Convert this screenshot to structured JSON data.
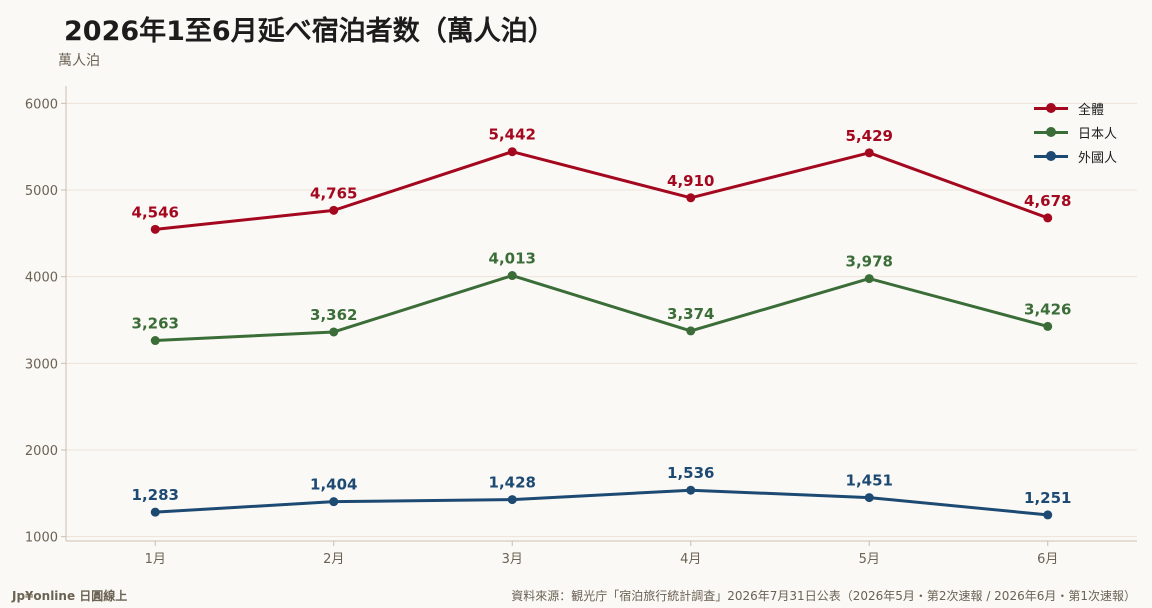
{
  "title": "2026年1至6月延べ宿泊者数（萬人泊）",
  "unit_label": "萬人泊",
  "brand": "Jp¥online 日圓線上",
  "source": "資料來源：観光庁「宿泊旅行統計調査」2026年7月31日公表（2026年5月・第2次速報 / 2026年6月・第1次速報）",
  "chart_data": {
    "type": "line",
    "categories": [
      "1月",
      "2月",
      "3月",
      "4月",
      "5月",
      "6月"
    ],
    "ylim": [
      950,
      6200
    ],
    "yticks": [
      1000,
      2000,
      3000,
      4000,
      5000,
      6000
    ],
    "grid": true,
    "legend_position": "top-right",
    "series": [
      {
        "name": "全體",
        "color": "#a3081f",
        "values": [
          4546,
          4765,
          5442,
          4910,
          5429,
          4678
        ],
        "labels": [
          "4,546",
          "4,765",
          "5,442",
          "4,910",
          "5,429",
          "4,678"
        ]
      },
      {
        "name": "日本人",
        "color": "#3b6d38",
        "values": [
          3263,
          3362,
          4013,
          3374,
          3978,
          3426
        ],
        "labels": [
          "3,263",
          "3,362",
          "4,013",
          "3,374",
          "3,978",
          "3,426"
        ]
      },
      {
        "name": "外國人",
        "color": "#1d4a73",
        "values": [
          1283,
          1404,
          1428,
          1536,
          1451,
          1251
        ],
        "labels": [
          "1,283",
          "1,404",
          "1,428",
          "1,536",
          "1,451",
          "1,251"
        ]
      }
    ]
  }
}
